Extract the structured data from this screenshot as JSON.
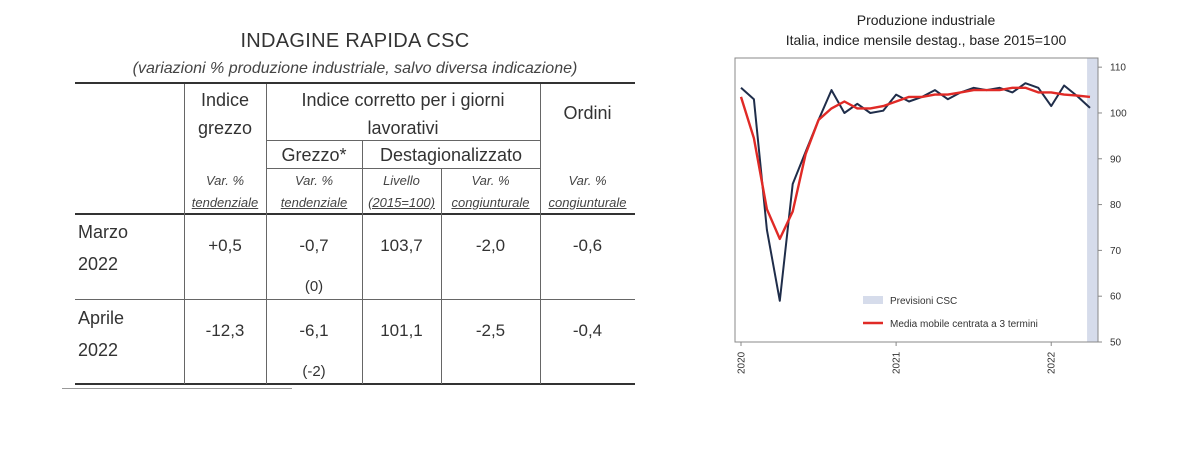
{
  "table": {
    "title": "INDAGINE RAPIDA CSC",
    "subtitle": "(variazioni % produzione industriale, salvo diversa indicazione)",
    "headers": {
      "indice_grezzo_1": "Indice",
      "indice_grezzo_2": "grezzo",
      "corretto_1": "Indice corretto per i giorni",
      "corretto_2": "lavorativi",
      "ordini": "Ordini",
      "grezzo_star": "Grezzo*",
      "destag": "Destagionalizzato"
    },
    "subheaders": {
      "c1_a": "Var. %",
      "c1_b": "tendenziale",
      "c2_a": "Var. %",
      "c2_b": "tendenziale",
      "c3_a": "Livello",
      "c3_b": "(2015=100)",
      "c4_a": "Var. %",
      "c4_b": "congiunturale",
      "c5_a": "Var. %",
      "c5_b": "congiunturale"
    },
    "rows": [
      {
        "label_1": "Marzo",
        "label_2": "2022",
        "grezzo": "+0,5",
        "corr_grezzo": "-0,7",
        "corr_note": "(0)",
        "livello": "103,7",
        "destag_var": "-2,0",
        "ordini": "-0,6"
      },
      {
        "label_1": "Aprile",
        "label_2": "2022",
        "grezzo": "-12,3",
        "corr_grezzo": "-6,1",
        "corr_note": "(-2)",
        "livello": "101,1",
        "destag_var": "-2,5",
        "ordini": "-0,4"
      }
    ]
  },
  "chart": {
    "title": "Produzione industriale",
    "subtitle": "Italia, indice mensile destag., base 2015=100",
    "colors": {
      "series_main": "#1f2d4a",
      "series_ma": "#e02a26",
      "forecast_band": "#d6dceb",
      "frame": "#888888"
    }
  },
  "chart_data": {
    "type": "line",
    "title": "Produzione industriale",
    "subtitle": "Italia, indice mensile destag., base 2015=100",
    "x_tick_labels": [
      "2020",
      "2021",
      "2022"
    ],
    "y_ticks": [
      50,
      60,
      70,
      80,
      90,
      100,
      110
    ],
    "ylim": [
      50,
      112
    ],
    "y_axis_side": "right",
    "grid": false,
    "legend_position": "bottom-right inside",
    "x": [
      "2020-01",
      "2020-02",
      "2020-03",
      "2020-04",
      "2020-05",
      "2020-06",
      "2020-07",
      "2020-08",
      "2020-09",
      "2020-10",
      "2020-11",
      "2020-12",
      "2021-01",
      "2021-02",
      "2021-03",
      "2021-04",
      "2021-05",
      "2021-06",
      "2021-07",
      "2021-08",
      "2021-09",
      "2021-10",
      "2021-11",
      "2021-12",
      "2022-01",
      "2022-02",
      "2022-03",
      "2022-04"
    ],
    "series": [
      {
        "name": "",
        "values": [
          105.5,
          103.0,
          74.5,
          59.0,
          84.5,
          91.5,
          98.5,
          105.0,
          100.0,
          102.0,
          100.0,
          100.5,
          104.0,
          102.5,
          103.5,
          105.0,
          103.0,
          104.5,
          105.5,
          105.0,
          105.5,
          104.5,
          106.5,
          105.5,
          101.5,
          106.0,
          103.7,
          101.1
        ]
      },
      {
        "name": "Media mobile centrata a 3 termini",
        "values": [
          103.5,
          94.5,
          79.0,
          72.5,
          78.5,
          91.0,
          98.5,
          101.0,
          102.5,
          101.0,
          101.0,
          101.5,
          102.5,
          103.5,
          103.5,
          104.0,
          104.0,
          104.5,
          105.0,
          105.0,
          105.0,
          105.5,
          105.5,
          104.5,
          104.5,
          104.0,
          103.8,
          103.5
        ]
      }
    ],
    "forecast_band_label": "Previsioni CSC",
    "forecast_period": [
      "2022-03",
      "2022-04"
    ]
  }
}
